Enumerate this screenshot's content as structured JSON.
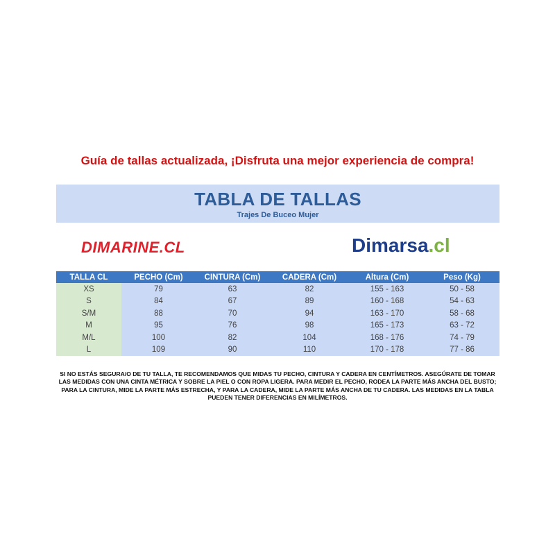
{
  "headline": "Guía de tallas actualizada, ¡Disfruta una mejor experiencia de compra!",
  "title": "TABLA DE TALLAS",
  "subtitle": "Trajes De Buceo Mujer",
  "logos": {
    "dimarine": "DIMARINE.CL",
    "dimarsa_main": "Dimarsa",
    "dimarsa_suffix": ".cl"
  },
  "colors": {
    "headline": "#d11515",
    "band": "#cddcf4",
    "header": "#3c78c3",
    "size_col": "#d7e9cf",
    "cells": "#cad9f5"
  },
  "table": {
    "headers": [
      "TALLA CL",
      "PECHO (Cm)",
      "CINTURA (Cm)",
      "CADERA (Cm)",
      "Altura (Cm)",
      "Peso (Kg)"
    ],
    "rows": [
      [
        "XS",
        "79",
        "63",
        "82",
        "155 - 163",
        "50 - 58"
      ],
      [
        "S",
        "84",
        "67",
        "89",
        "160 - 168",
        "54 - 63"
      ],
      [
        "S/M",
        "88",
        "70",
        "94",
        "163 - 170",
        "58 - 68"
      ],
      [
        "M",
        "95",
        "76",
        "98",
        "165 - 173",
        "63 - 72"
      ],
      [
        "M/L",
        "100",
        "82",
        "104",
        "168 - 176",
        "74 - 79"
      ],
      [
        "L",
        "109",
        "90",
        "110",
        "170 - 178",
        "77 - 86"
      ]
    ]
  },
  "note": "SI NO ESTÁS SEGURA/O DE TU TALLA, TE RECOMENDAMOS QUE MIDAS TU PECHO, CINTURA Y CADERA EN CENTÍMETROS. ASEGÚRATE DE TOMAR LAS MEDIDAS CON UNA CINTA MÉTRICA Y SOBRE LA PIEL O CON ROPA LIGERA. PARA MEDIR EL PECHO, RODEA LA PARTE MÁS ANCHA DEL BUSTO; PARA LA CINTURA, MIDE LA PARTE MÁS ESTRECHA, Y PARA LA CADERA, MIDE LA PARTE MÁS ANCHA DE TU CADERA. LAS MEDIDAS EN LA TABLA PUEDEN TENER DIFERENCIAS EN MILÍMETROS."
}
